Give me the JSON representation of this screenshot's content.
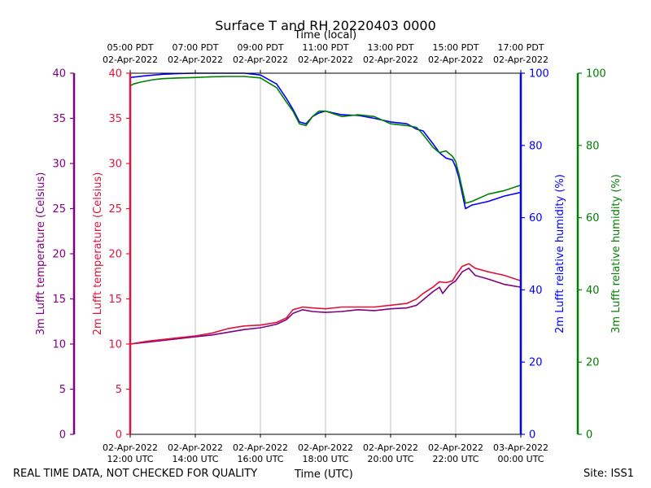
{
  "chart_data": {
    "type": "line",
    "title": "Surface T and RH 20220403 0000",
    "top_axis_title": "Time (local)",
    "xlabel": "Time (UTC)",
    "x_range_hours_utc": [
      12,
      24
    ],
    "x_ticks": [
      {
        "hour": 12,
        "utc": [
          "02-Apr-2022",
          "12:00 UTC"
        ],
        "local": [
          "05:00 PDT",
          "02-Apr-2022"
        ]
      },
      {
        "hour": 14,
        "utc": [
          "02-Apr-2022",
          "14:00 UTC"
        ],
        "local": [
          "07:00 PDT",
          "02-Apr-2022"
        ]
      },
      {
        "hour": 16,
        "utc": [
          "02-Apr-2022",
          "16:00 UTC"
        ],
        "local": [
          "09:00 PDT",
          "02-Apr-2022"
        ]
      },
      {
        "hour": 18,
        "utc": [
          "02-Apr-2022",
          "18:00 UTC"
        ],
        "local": [
          "11:00 PDT",
          "02-Apr-2022"
        ]
      },
      {
        "hour": 20,
        "utc": [
          "02-Apr-2022",
          "20:00 UTC"
        ],
        "local": [
          "13:00 PDT",
          "02-Apr-2022"
        ]
      },
      {
        "hour": 22,
        "utc": [
          "02-Apr-2022",
          "22:00 UTC"
        ],
        "local": [
          "15:00 PDT",
          "02-Apr-2022"
        ]
      },
      {
        "hour": 24,
        "utc": [
          "03-Apr-2022",
          "00:00 UTC"
        ],
        "local": [
          "17:00 PDT",
          "02-Apr-2022"
        ]
      }
    ],
    "axes": {
      "temp3m": {
        "label": "3m Lufft temperature (Celsius)",
        "ylim": [
          0,
          40
        ],
        "ticks": [
          0,
          5,
          10,
          15,
          20,
          25,
          30,
          35,
          40
        ],
        "color": "#800080"
      },
      "temp2m": {
        "label": "2m Lufft temperature (Celsius)",
        "ylim": [
          0,
          40
        ],
        "ticks": [
          0,
          5,
          10,
          15,
          20,
          25,
          30,
          35,
          40
        ],
        "color": "#dc143c"
      },
      "rh2m": {
        "label": "2m Lufft relative humidity (%)",
        "ylim": [
          0,
          100
        ],
        "ticks": [
          0,
          20,
          40,
          60,
          80,
          100
        ],
        "color": "#0000ff"
      },
      "rh3m": {
        "label": "3m Lufft relative humidity (%)",
        "ylim": [
          0,
          100
        ],
        "ticks": [
          0,
          20,
          40,
          60,
          80,
          100
        ],
        "color": "#008000"
      }
    },
    "series": [
      {
        "name": "3m temperature",
        "axis": "temp3m",
        "color": "#800080",
        "x": [
          12,
          12.5,
          13,
          13.5,
          14,
          14.5,
          15,
          15.5,
          16,
          16.5,
          16.8,
          17,
          17.3,
          17.6,
          18,
          18.5,
          19,
          19.5,
          20,
          20.5,
          20.8,
          21,
          21.3,
          21.5,
          21.6,
          21.8,
          22,
          22.2,
          22.4,
          22.6,
          23,
          23.5,
          24
        ],
        "values": [
          10.0,
          10.2,
          10.4,
          10.6,
          10.8,
          11.0,
          11.3,
          11.6,
          11.8,
          12.2,
          12.7,
          13.4,
          13.8,
          13.6,
          13.5,
          13.6,
          13.8,
          13.7,
          13.9,
          14.0,
          14.3,
          14.9,
          15.8,
          16.3,
          15.6,
          16.5,
          17.0,
          18.0,
          18.4,
          17.6,
          17.2,
          16.6,
          16.3
        ]
      },
      {
        "name": "2m temperature",
        "axis": "temp2m",
        "color": "#dc143c",
        "x": [
          12,
          12.5,
          13,
          13.5,
          14,
          14.5,
          15,
          15.5,
          16,
          16.5,
          16.8,
          17,
          17.3,
          17.6,
          18,
          18.5,
          19,
          19.5,
          20,
          20.5,
          20.8,
          21,
          21.3,
          21.5,
          21.7,
          21.9,
          22,
          22.2,
          22.4,
          22.6,
          23,
          23.5,
          24
        ],
        "values": [
          10.0,
          10.3,
          10.5,
          10.7,
          10.9,
          11.2,
          11.7,
          12.0,
          12.1,
          12.4,
          12.9,
          13.8,
          14.1,
          14.0,
          13.9,
          14.1,
          14.1,
          14.1,
          14.3,
          14.5,
          15.0,
          15.6,
          16.3,
          16.9,
          16.8,
          17.0,
          17.6,
          18.6,
          18.9,
          18.4,
          18.0,
          17.6,
          17.0
        ]
      },
      {
        "name": "2m relative humidity",
        "axis": "rh2m",
        "color": "#0000ff",
        "x": [
          12,
          12.5,
          13,
          13.5,
          14,
          14.5,
          15,
          15.5,
          16,
          16.5,
          16.8,
          17,
          17.2,
          17.4,
          17.6,
          17.8,
          18,
          18.5,
          19,
          19.5,
          20,
          20.5,
          20.8,
          21,
          21.3,
          21.5,
          21.7,
          21.9,
          22,
          22.1,
          22.3,
          22.5,
          23,
          23.5,
          24
        ],
        "values": [
          98.8,
          99.3,
          99.7,
          99.9,
          100,
          100,
          100,
          100,
          99.5,
          97,
          93,
          90,
          86.5,
          86,
          88,
          89,
          89.5,
          88.5,
          88.3,
          87.5,
          86.5,
          86,
          84.5,
          84,
          80.5,
          78,
          76.5,
          76,
          74,
          71,
          62.5,
          63.5,
          64.5,
          66,
          67
        ]
      },
      {
        "name": "3m relative humidity",
        "axis": "rh3m",
        "color": "#008000",
        "x": [
          12,
          12.1,
          12.3,
          12.7,
          13,
          13.5,
          14,
          14.5,
          15,
          15.5,
          16,
          16.5,
          16.8,
          17,
          17.2,
          17.4,
          17.6,
          17.8,
          18,
          18.5,
          19,
          19.5,
          20,
          20.5,
          20.8,
          21,
          21.3,
          21.5,
          21.7,
          21.9,
          22,
          22.1,
          22.3,
          22.5,
          23,
          23.5,
          24
        ],
        "values": [
          96.5,
          97,
          97.5,
          98.2,
          98.5,
          98.7,
          98.8,
          99,
          99.1,
          99.1,
          98.7,
          96,
          92,
          89.5,
          86,
          85.5,
          88,
          89.5,
          89.5,
          88,
          88.5,
          88,
          86,
          85.5,
          85,
          83,
          79.5,
          78,
          78.5,
          77,
          75.5,
          72,
          64,
          64.5,
          66.5,
          67.5,
          69
        ]
      }
    ]
  },
  "footer": {
    "left": "REAL TIME DATA, NOT CHECKED FOR QUALITY",
    "center": "Time (UTC)",
    "right": "Site: ISS1"
  }
}
